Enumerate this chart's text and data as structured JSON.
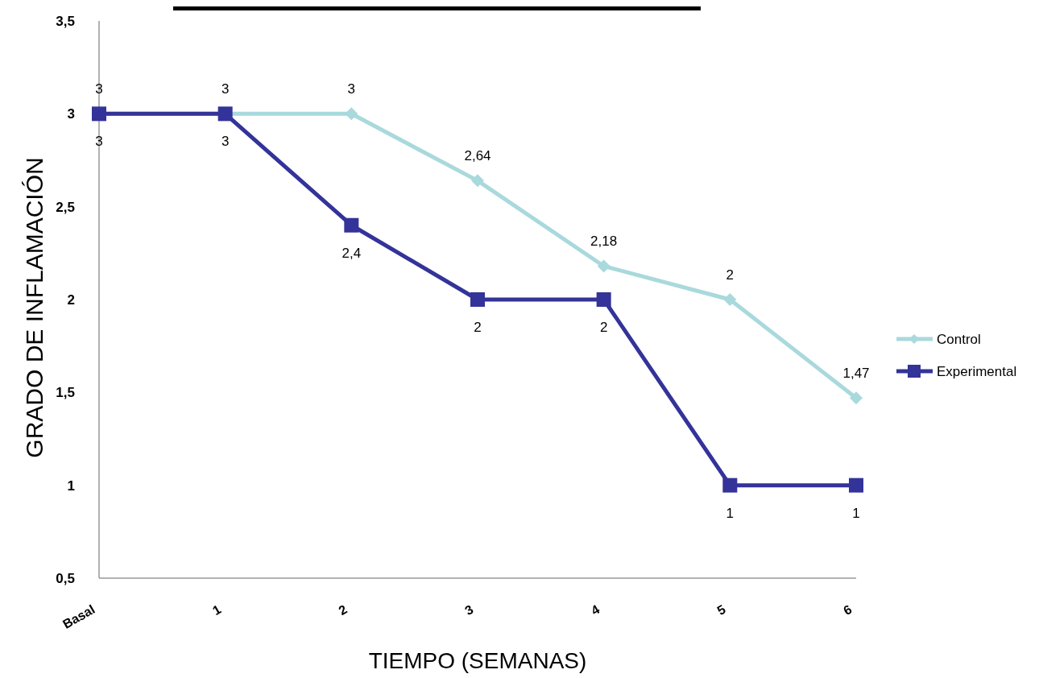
{
  "chart_data": {
    "type": "line",
    "xlabel": "TIEMPO (SEMANAS)",
    "ylabel": "GRADO DE INFLAMACIÓN",
    "categories": [
      "Basal",
      "1",
      "2",
      "3",
      "4",
      "5",
      "6"
    ],
    "series": [
      {
        "name": "Control",
        "color": "#a9d9dc",
        "marker": "diamond",
        "values": [
          3,
          3,
          3,
          2.64,
          2.18,
          2,
          1.47
        ],
        "value_labels": [
          "3",
          "3",
          "3",
          "2,64",
          "2,18",
          "2",
          "1,47"
        ]
      },
      {
        "name": "Experimental",
        "color": "#333399",
        "marker": "square",
        "values": [
          3,
          3,
          2.4,
          2,
          2,
          1,
          1
        ],
        "value_labels": [
          "3",
          "3",
          "2,4",
          "2",
          "2",
          "1",
          "1"
        ]
      }
    ],
    "ylim": [
      0.5,
      3.5
    ],
    "yticks": [
      {
        "value": 0.5,
        "label": "0,5"
      },
      1,
      {
        "value": 1.5,
        "label": "1,5"
      },
      2,
      {
        "value": 2.5,
        "label": "2,5"
      },
      3,
      {
        "value": 3.5,
        "label": "3,5"
      }
    ],
    "legend": "right",
    "grid": false,
    "line_style": "solid"
  }
}
